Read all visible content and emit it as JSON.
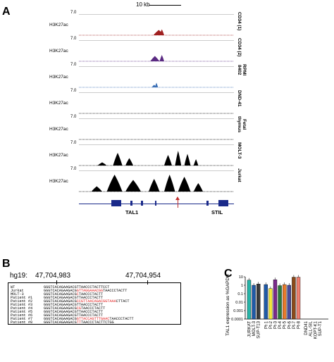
{
  "panel_a": {
    "letter": "A",
    "scale_label": "10 kb",
    "tracks": [
      {
        "ymax": "7.0",
        "mark": "H3K27ac",
        "sample": "CD34 (1)",
        "color": "#a02020",
        "peaks": [
          [
            0.48,
            0.55,
            0.25
          ],
          [
            0.52,
            0.55,
            0.28
          ]
        ]
      },
      {
        "ymax": "7.0",
        "mark": "H3K27ac",
        "sample": "CD34 (2)",
        "color": "#5a2a82",
        "peaks": [
          [
            0.46,
            0.52,
            0.25
          ],
          [
            0.52,
            0.55,
            0.3
          ]
        ]
      },
      {
        "ymax": "7.0",
        "mark": "H3K27ac",
        "sample": "RPMI\n8402",
        "color": "#3a6fb5",
        "peaks": [
          [
            0.47,
            0.5,
            0.12
          ],
          [
            0.49,
            0.51,
            0.22
          ]
        ]
      },
      {
        "ymax": "7.0",
        "mark": "H3K27ac",
        "sample": "DND-41",
        "color": "#000000",
        "peaks": []
      },
      {
        "ymax": "7.0",
        "mark": "H3K27ac",
        "sample": "Fetal\nthymus",
        "color": "#000000",
        "peaks": []
      },
      {
        "ymax": "7.0",
        "mark": "H3K27ac",
        "sample": "MOLT-3",
        "color": "#000000",
        "peaks": [
          [
            0.12,
            0.18,
            0.15
          ],
          [
            0.22,
            0.28,
            0.6
          ],
          [
            0.3,
            0.35,
            0.35
          ],
          [
            0.55,
            0.6,
            0.5
          ],
          [
            0.62,
            0.66,
            0.7
          ],
          [
            0.68,
            0.72,
            0.55
          ],
          [
            0.74,
            0.77,
            0.3
          ]
        ]
      },
      {
        "ymax": "7.0",
        "mark": "H3K27ac",
        "sample": "Jurkat",
        "color": "#000000",
        "peaks": [
          [
            0.08,
            0.15,
            0.25
          ],
          [
            0.18,
            0.28,
            0.8
          ],
          [
            0.3,
            0.4,
            0.55
          ],
          [
            0.45,
            0.52,
            0.6
          ],
          [
            0.55,
            0.62,
            0.8
          ],
          [
            0.64,
            0.72,
            0.7
          ],
          [
            0.74,
            0.8,
            0.4
          ]
        ]
      }
    ],
    "genes": {
      "left": "TAL1",
      "right": "STIL"
    }
  },
  "panel_b": {
    "letter": "B",
    "genome": "hg19:",
    "coord_left": "47,704,983",
    "coord_right": "47,704,954",
    "rows": [
      {
        "name": "WT",
        "pre": "GGGTCACAGAAGACG",
        "ins": "",
        "post": "TTAACCCTACTTCCT"
      },
      {
        "name": "Jurkat",
        "pre": "GGGTCACAGAAGACG",
        "ins": "GTTAGGAAACGG",
        "post": "TAACCCTACTT"
      },
      {
        "name": "MOLT-3",
        "pre": "GGGTCACAGAAGACG",
        "ins": "C",
        "post": "TAACCCTACTT"
      },
      {
        "name": "Patient #1",
        "pre": "GGGTCACAGAAGACG",
        "ins": "",
        "post": "TTAACCCTACTT"
      },
      {
        "name": "Patient #2",
        "pre": "GGGTCACAGAAGACG",
        "ins": "CCGTTAACAGACGGTAAA",
        "post": "CTTACT"
      },
      {
        "name": "Patient #3",
        "pre": "GGGTCACAGAAGACG",
        "ins": "",
        "post": "TTAACCCTACTT"
      },
      {
        "name": "Patient #4",
        "pre": "GGGTCACAGAAGACG",
        "ins": "CG",
        "post": "TAACCCTACTT"
      },
      {
        "name": "Patient #5",
        "pre": "GGGTCACAGAAGACG",
        "ins": "",
        "post": "TTAACCCTACTT"
      },
      {
        "name": "Patient #6",
        "pre": "GGGTCACAGAAGACG",
        "ins": "",
        "post": "TTAACCCTACTT"
      },
      {
        "name": "Patient #7",
        "pre": "GGGTCACAGAAGACG",
        "ins": "GTTACCAGTTTGAAC",
        "post": "TAACCCTACTT"
      },
      {
        "name": "Patient #8",
        "pre": "GGGTCACAGAAGACG",
        "ins": "TT",
        "post": "TAACCCTACTTCTGG"
      }
    ]
  },
  "panel_c": {
    "letter": "C",
    "chart_data": {
      "type": "bar",
      "ylabel": "TAL1 expression as %GAPDH",
      "yscale": "log",
      "ylim": [
        0.0001,
        10
      ],
      "yticks": [
        "10",
        "1",
        "0.1",
        "0.01",
        "0.001",
        "0.0001"
      ],
      "categories": [
        "JURKAT",
        "MOLT-3",
        "SUP-T13",
        "Pt-1",
        "Pt-2",
        "Pt-3",
        "Pt-4",
        "Pt-5",
        "Pt-6",
        "Pt-7",
        "Pt-8",
        "DND41",
        "ALL-SIL",
        "KOPT-K1",
        "SUP-T1"
      ],
      "values": [
        4,
        1.0,
        1.4,
        1.2,
        0.4,
        4.5,
        0.9,
        1.2,
        1.0,
        9,
        9,
        null,
        null,
        null,
        null
      ],
      "colors": [
        "#27b4a8",
        "#1f5aa8",
        "#3a3a3a",
        "#1f5aa8",
        "#f2e63a",
        "#7b2a8c",
        "#2a7a3a",
        "#e87a2a",
        "#4a4a9a",
        "#8b4a1a",
        "#f08070",
        "#000000",
        "#000000",
        "#000000",
        "#000000"
      ]
    }
  }
}
